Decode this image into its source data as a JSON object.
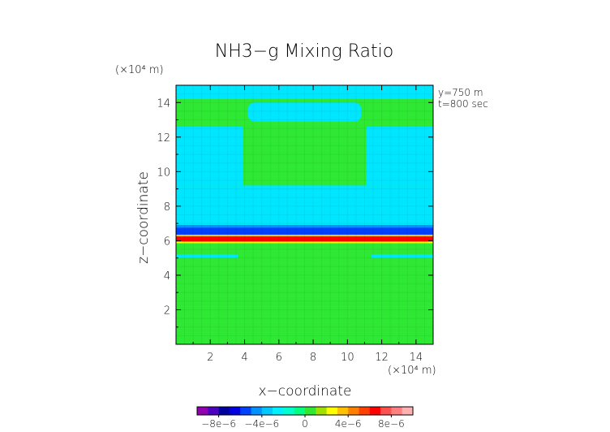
{
  "chart_data": {
    "type": "heatmap",
    "title": "NH3−g Mixing Ratio",
    "xlabel": "x−coordinate",
    "ylabel": "z−coordinate",
    "x_scale_label": "(×10⁴ m)",
    "y_scale_label": "(×10⁴ m)",
    "annotations": [
      "y=750  m",
      "t=800 sec"
    ],
    "xlim": [
      0,
      15
    ],
    "ylim": [
      0,
      15
    ],
    "x_ticks": [
      2,
      4,
      6,
      8,
      10,
      12,
      14
    ],
    "x_tick_labels": [
      "2",
      "4",
      "6",
      "8",
      "10",
      "12",
      "14"
    ],
    "y_ticks": [
      2,
      4,
      6,
      8,
      10,
      12,
      14
    ],
    "y_tick_labels": [
      "2",
      "4",
      "6",
      "8",
      "10",
      "12",
      "14"
    ],
    "colorbar": {
      "min": -1e-05,
      "max": 1e-05,
      "tick_values": [
        -8e-06,
        -4e-06,
        0,
        4e-06,
        8e-06
      ],
      "tick_labels": [
        "−8e−6",
        "−4e−6",
        "0",
        "4e−6",
        "8e−6"
      ],
      "colors": [
        "#9000b0",
        "#5000c0",
        "#0000a0",
        "#0000e0",
        "#0040ff",
        "#0090ff",
        "#00c8ff",
        "#00f0ff",
        "#00ffcc",
        "#00ff80",
        "#30e830",
        "#a0e000",
        "#ffff00",
        "#ffc000",
        "#ff8000",
        "#ff4000",
        "#ff0000",
        "#ff5050",
        "#ff8080",
        "#ffb0b0"
      ]
    },
    "field_colors": {
      "background": "#2ee834",
      "near_zero_negative": "#00e6ff",
      "strong_negative": "#0000a0",
      "strong_positive": "#ff4000"
    },
    "regions": [
      {
        "x": [
          0,
          15
        ],
        "z": [
          14.2,
          15
        ],
        "value": -1e-06
      },
      {
        "x": [
          0,
          3.9
        ],
        "z": [
          9.2,
          12.6
        ],
        "value": -1e-06
      },
      {
        "x": [
          11.1,
          15
        ],
        "z": [
          9.2,
          12.6
        ],
        "value": -1e-06
      },
      {
        "x": [
          4.2,
          10.8
        ],
        "z": [
          12.9,
          14.0
        ],
        "value": -1e-06
      },
      {
        "x": [
          0,
          15
        ],
        "z": [
          6.9,
          9.2
        ],
        "value": -1e-06
      },
      {
        "x": [
          0,
          15
        ],
        "z": [
          6.35,
          6.9
        ],
        "value": -6e-06
      },
      {
        "x": [
          0,
          15
        ],
        "z": [
          5.85,
          6.35
        ],
        "value": 6e-06
      },
      {
        "x": [
          0,
          3.6
        ],
        "z": [
          5.0,
          5.2
        ],
        "value": -1e-06
      },
      {
        "x": [
          11.4,
          15
        ],
        "z": [
          5.0,
          5.2
        ],
        "value": -1e-06
      }
    ]
  }
}
